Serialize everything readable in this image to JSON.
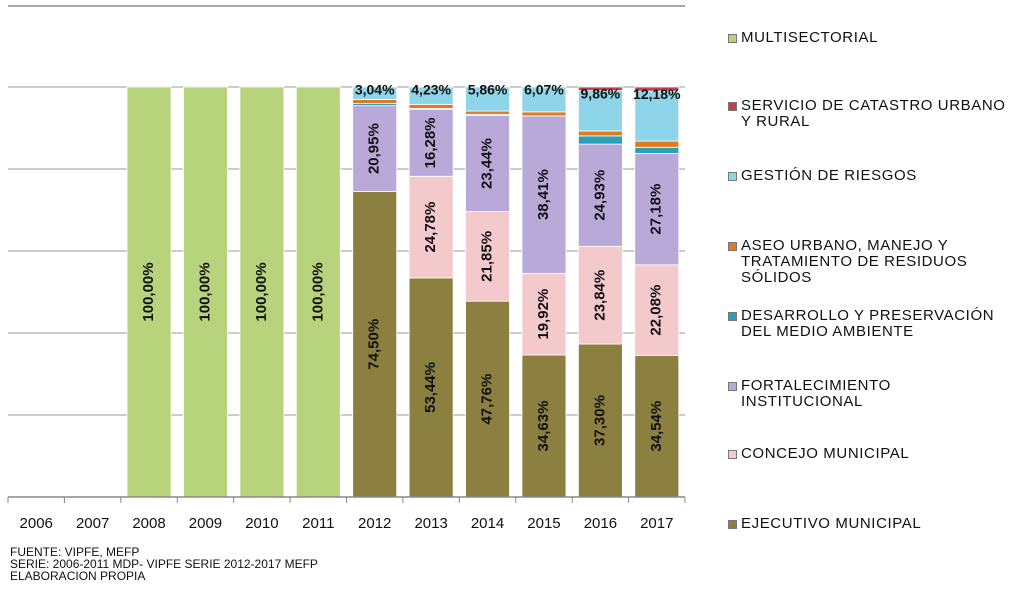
{
  "chart_data": {
    "type": "stacked_bar",
    "categories": [
      "2006",
      "2007",
      "2008",
      "2009",
      "2010",
      "2011",
      "2012",
      "2013",
      "2014",
      "2015",
      "2016",
      "2017"
    ],
    "series": [
      {
        "name": "EJECUTIVO MUNICIPAL",
        "color": "#8c8040",
        "values": [
          null,
          null,
          null,
          null,
          null,
          null,
          74.5,
          53.44,
          47.76,
          34.63,
          37.3,
          34.54
        ],
        "value_labels": [
          null,
          null,
          null,
          null,
          null,
          null,
          "74,50%",
          "53,44%",
          "47,76%",
          "34,63%",
          "37,30%",
          "34,54%"
        ]
      },
      {
        "name": "CONCEJO MUNICIPAL",
        "color": "#f4c9cb",
        "values": [
          null,
          null,
          null,
          null,
          null,
          null,
          null,
          24.78,
          21.85,
          19.92,
          23.84,
          22.08
        ],
        "value_labels": [
          null,
          null,
          null,
          null,
          null,
          null,
          null,
          "24,78%",
          "21,85%",
          "19,92%",
          "23,84%",
          "22,08%"
        ]
      },
      {
        "name": "FORTALECIMIENTO INSTITUCIONAL",
        "color": "#b9a9d9",
        "values": [
          null,
          null,
          null,
          null,
          null,
          null,
          20.95,
          16.28,
          23.44,
          38.41,
          24.93,
          27.18
        ],
        "value_labels": [
          null,
          null,
          null,
          null,
          null,
          null,
          "20,95%",
          "16,28%",
          "23,44%",
          "38,41%",
          "24,93%",
          "27,18%"
        ]
      },
      {
        "name": "DESARROLLO Y PRESERVACIÓN DEL MEDIO AMBIENTE",
        "color": "#2aa0b8",
        "values": [
          null,
          null,
          null,
          null,
          null,
          null,
          0.51,
          0.27,
          0.29,
          null,
          2.0,
          1.5
        ],
        "value_labels": [
          null,
          null,
          null,
          null,
          null,
          null,
          null,
          null,
          null,
          null,
          null,
          null
        ]
      },
      {
        "name": "ASEO URBANO, MANEJO Y TRATAMIENTO DE RESIDUOS SÓLIDOS",
        "color": "#e07a20",
        "values": [
          null,
          null,
          null,
          null,
          null,
          null,
          1.0,
          1.0,
          0.8,
          0.97,
          1.2,
          1.5
        ],
        "value_labels": [
          null,
          null,
          null,
          null,
          null,
          null,
          null,
          null,
          null,
          null,
          null,
          null
        ]
      },
      {
        "name": "GESTIÓN DE RIESGOS",
        "color": "#8fd5e9",
        "values": [
          null,
          null,
          null,
          null,
          null,
          null,
          3.04,
          4.23,
          5.86,
          6.07,
          9.86,
          12.18
        ],
        "value_labels": [
          null,
          null,
          null,
          null,
          null,
          null,
          "3,04%",
          "4,23%",
          "5,86%",
          "6,07%",
          "9,86%",
          "12,18%"
        ]
      },
      {
        "name": "SERVICIO DE  CATASTRO URBANO Y RURAL",
        "color": "#c04050",
        "values": [
          null,
          null,
          null,
          null,
          null,
          null,
          null,
          null,
          null,
          null,
          0.87,
          1.02
        ],
        "value_labels": [
          null,
          null,
          null,
          null,
          null,
          null,
          null,
          null,
          null,
          null,
          null,
          null
        ]
      },
      {
        "name": "MULTISECTORIAL",
        "color": "#b7d47c",
        "values": [
          null,
          null,
          100,
          100,
          100,
          100,
          null,
          null,
          null,
          null,
          null,
          null
        ],
        "value_labels": [
          null,
          null,
          "100,00%",
          "100,00%",
          "100,00%",
          "100,00%",
          null,
          null,
          null,
          null,
          null,
          null
        ]
      }
    ],
    "ylim": [
      0,
      120
    ],
    "yticks": [
      0,
      20,
      40,
      60,
      80,
      100
    ],
    "grid": true,
    "notes": [
      "FUENTE: VIPFE, MEFP",
      "SERIE: 2006-2011 MDP- VIPFE  SERIE 2012-2017 MEFP",
      "ELABORACION PROPIA"
    ]
  }
}
